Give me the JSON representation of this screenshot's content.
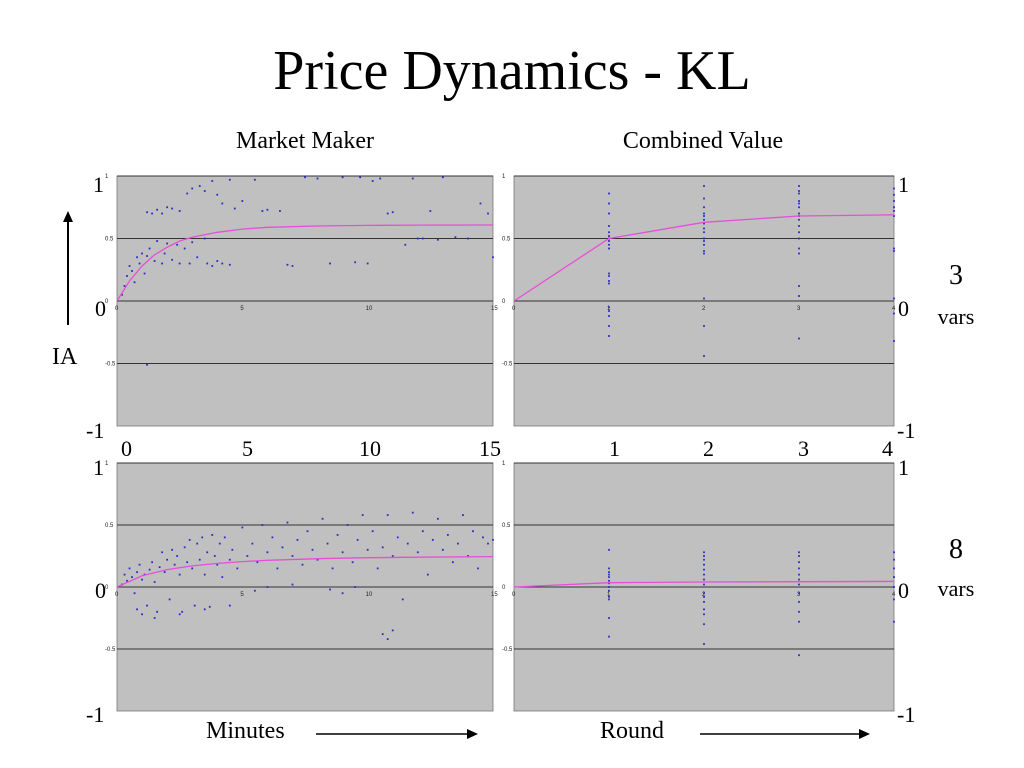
{
  "slide": {
    "title": "Price Dynamics - KL",
    "col_left_title": "Market Maker",
    "col_right_title": "Combined Value",
    "ylabel": "IA",
    "x_left_label": "Minutes",
    "x_right_label": "Round",
    "row1_label_num": "3",
    "row1_label_unit": "vars",
    "row2_label_num": "8",
    "row2_label_unit": "vars"
  },
  "axis_labels": {
    "y_top": "1",
    "y_zero": "0",
    "y_bottom": "-1",
    "x_minutes": [
      "0",
      "5",
      "10",
      "15"
    ],
    "x_rounds": [
      "1",
      "2",
      "3",
      "4"
    ]
  },
  "colors": {
    "panel_bg": "#c0c0c0",
    "points": "#2b2bc8",
    "fit": "#e64fd8"
  },
  "chart_data": [
    {
      "type": "scatter",
      "panel": "market-maker-3vars",
      "xlabel": "",
      "ylabel": "IA",
      "xlim": [
        0,
        15
      ],
      "ylim": [
        -1,
        1
      ],
      "grid": true,
      "fit_curve": {
        "x": [
          0,
          0.5,
          1,
          1.5,
          2,
          2.5,
          3,
          4,
          5,
          6,
          8,
          10,
          12,
          15
        ],
        "y": [
          0,
          0.16,
          0.28,
          0.37,
          0.43,
          0.48,
          0.51,
          0.55,
          0.575,
          0.59,
          0.6,
          0.605,
          0.607,
          0.608
        ]
      },
      "points": [
        [
          0.2,
          0.05
        ],
        [
          0.3,
          0.12
        ],
        [
          0.4,
          0.2
        ],
        [
          0.5,
          0.28
        ],
        [
          0.6,
          0.24
        ],
        [
          0.7,
          0.15
        ],
        [
          0.8,
          0.35
        ],
        [
          0.9,
          0.3
        ],
        [
          1.0,
          0.38
        ],
        [
          1.1,
          0.22
        ],
        [
          1.2,
          0.36
        ],
        [
          1.3,
          0.42
        ],
        [
          1.2,
          -0.51
        ],
        [
          1.5,
          0.32
        ],
        [
          1.6,
          0.48
        ],
        [
          1.8,
          0.3
        ],
        [
          1.9,
          0.38
        ],
        [
          2.0,
          0.46
        ],
        [
          2.2,
          0.33
        ],
        [
          2.4,
          0.45
        ],
        [
          2.5,
          0.3
        ],
        [
          2.7,
          0.42
        ],
        [
          2.9,
          0.3
        ],
        [
          3.0,
          0.47
        ],
        [
          3.2,
          0.35
        ],
        [
          3.5,
          0.5
        ],
        [
          3.6,
          0.3
        ],
        [
          3.8,
          0.28
        ],
        [
          4.0,
          0.32
        ],
        [
          4.2,
          0.3
        ],
        [
          4.5,
          0.29
        ],
        [
          1.2,
          0.71
        ],
        [
          1.4,
          0.7
        ],
        [
          1.6,
          0.73
        ],
        [
          1.8,
          0.7
        ],
        [
          2.0,
          0.75
        ],
        [
          2.2,
          0.74
        ],
        [
          2.5,
          0.72
        ],
        [
          2.8,
          0.86
        ],
        [
          3.0,
          0.9
        ],
        [
          3.3,
          0.92
        ],
        [
          3.5,
          0.88
        ],
        [
          3.8,
          0.96
        ],
        [
          4.0,
          0.85
        ],
        [
          4.2,
          0.78
        ],
        [
          4.5,
          0.97
        ],
        [
          4.7,
          0.74
        ],
        [
          5.0,
          0.8
        ],
        [
          5.5,
          0.97
        ],
        [
          5.8,
          0.72
        ],
        [
          6.0,
          0.73
        ],
        [
          6.5,
          0.72
        ],
        [
          6.8,
          0.29
        ],
        [
          7.0,
          0.28
        ],
        [
          7.5,
          0.99
        ],
        [
          8.0,
          0.98
        ],
        [
          8.5,
          0.3
        ],
        [
          9.0,
          0.99
        ],
        [
          9.5,
          0.31
        ],
        [
          10.0,
          0.3
        ],
        [
          10.5,
          0.98
        ],
        [
          9.7,
          0.99
        ],
        [
          10.2,
          0.96
        ],
        [
          10.8,
          0.7
        ],
        [
          11.0,
          0.71
        ],
        [
          11.5,
          0.45
        ],
        [
          12.0,
          0.5
        ],
        [
          12.5,
          0.72
        ],
        [
          12.8,
          0.49
        ],
        [
          13.0,
          0.99
        ],
        [
          13.5,
          0.51
        ],
        [
          14.0,
          0.5
        ],
        [
          14.5,
          0.78
        ],
        [
          14.8,
          0.7
        ],
        [
          15.0,
          0.35
        ],
        [
          11.8,
          0.98
        ],
        [
          12.2,
          0.5
        ]
      ]
    },
    {
      "type": "scatter",
      "panel": "combined-value-3vars",
      "xlim": [
        0,
        4
      ],
      "ylim": [
        -1,
        1
      ],
      "grid": true,
      "fit_curve": {
        "x": [
          0,
          1,
          2,
          3,
          4
        ],
        "y": [
          0,
          0.5,
          0.63,
          0.68,
          0.69
        ]
      },
      "points": [
        [
          1,
          0.86
        ],
        [
          1,
          0.78
        ],
        [
          1,
          0.7
        ],
        [
          1,
          0.6
        ],
        [
          1,
          0.55
        ],
        [
          1,
          0.52
        ],
        [
          1,
          0.5
        ],
        [
          1,
          0.48
        ],
        [
          1,
          0.45
        ],
        [
          1,
          0.42
        ],
        [
          1,
          0.22
        ],
        [
          1,
          0.2
        ],
        [
          1,
          0.16
        ],
        [
          1,
          0.14
        ],
        [
          1,
          -0.05
        ],
        [
          1,
          -0.08
        ],
        [
          1,
          -0.12
        ],
        [
          1,
          -0.2
        ],
        [
          1,
          -0.28
        ],
        [
          2,
          0.92
        ],
        [
          2,
          0.82
        ],
        [
          2,
          0.75
        ],
        [
          2,
          0.7
        ],
        [
          2,
          0.68
        ],
        [
          2,
          0.65
        ],
        [
          2,
          0.62
        ],
        [
          2,
          0.58
        ],
        [
          2,
          0.55
        ],
        [
          2,
          0.5
        ],
        [
          2,
          0.48
        ],
        [
          2,
          0.45
        ],
        [
          2,
          0.4
        ],
        [
          2,
          0.38
        ],
        [
          2,
          0.02
        ],
        [
          2,
          -0.2
        ],
        [
          2,
          -0.44
        ],
        [
          3,
          0.92
        ],
        [
          3,
          0.88
        ],
        [
          3,
          0.86
        ],
        [
          3,
          0.8
        ],
        [
          3,
          0.78
        ],
        [
          3,
          0.75
        ],
        [
          3,
          0.7
        ],
        [
          3,
          0.68
        ],
        [
          3,
          0.65
        ],
        [
          3,
          0.6
        ],
        [
          3,
          0.55
        ],
        [
          3,
          0.5
        ],
        [
          3,
          0.42
        ],
        [
          3,
          0.38
        ],
        [
          3,
          0.12
        ],
        [
          3,
          0.04
        ],
        [
          3,
          -0.3
        ],
        [
          4,
          0.9
        ],
        [
          4,
          0.85
        ],
        [
          4,
          0.8
        ],
        [
          4,
          0.75
        ],
        [
          4,
          0.72
        ],
        [
          4,
          0.68
        ],
        [
          4,
          0.42
        ],
        [
          4,
          0.4
        ],
        [
          4,
          0.02
        ],
        [
          4,
          -0.1
        ],
        [
          4,
          -0.32
        ]
      ]
    },
    {
      "type": "scatter",
      "panel": "market-maker-8vars",
      "xlim": [
        0,
        15
      ],
      "ylim": [
        -1,
        1
      ],
      "grid": true,
      "fit_curve": {
        "x": [
          0,
          1,
          2,
          3,
          4,
          5,
          6,
          8,
          10,
          12,
          15
        ],
        "y": [
          0,
          0.09,
          0.14,
          0.17,
          0.19,
          0.205,
          0.215,
          0.228,
          0.236,
          0.24,
          0.245
        ]
      },
      "points": [
        [
          0.2,
          0.02
        ],
        [
          0.3,
          0.1
        ],
        [
          0.4,
          0.05
        ],
        [
          0.5,
          0.15
        ],
        [
          0.6,
          0.08
        ],
        [
          0.7,
          -0.05
        ],
        [
          0.8,
          0.12
        ],
        [
          0.9,
          0.18
        ],
        [
          1.0,
          0.06
        ],
        [
          1.1,
          0.1
        ],
        [
          1.2,
          -0.15
        ],
        [
          1.3,
          0.14
        ],
        [
          1.4,
          0.2
        ],
        [
          1.5,
          0.04
        ],
        [
          1.6,
          -0.2
        ],
        [
          1.7,
          0.16
        ],
        [
          1.8,
          0.28
        ],
        [
          1.9,
          0.12
        ],
        [
          2.0,
          0.22
        ],
        [
          2.1,
          -0.1
        ],
        [
          2.2,
          0.3
        ],
        [
          2.3,
          0.18
        ],
        [
          2.4,
          0.25
        ],
        [
          2.5,
          0.1
        ],
        [
          2.6,
          -0.2
        ],
        [
          2.7,
          0.32
        ],
        [
          2.8,
          0.2
        ],
        [
          2.9,
          0.38
        ],
        [
          3.0,
          0.15
        ],
        [
          3.1,
          -0.15
        ],
        [
          3.2,
          0.35
        ],
        [
          3.3,
          0.22
        ],
        [
          3.4,
          0.4
        ],
        [
          3.5,
          0.1
        ],
        [
          3.6,
          0.28
        ],
        [
          3.7,
          -0.16
        ],
        [
          3.8,
          0.42
        ],
        [
          3.9,
          0.25
        ],
        [
          4.0,
          0.18
        ],
        [
          4.1,
          0.35
        ],
        [
          4.2,
          0.08
        ],
        [
          4.3,
          0.4
        ],
        [
          4.5,
          0.22
        ],
        [
          4.6,
          0.3
        ],
        [
          4.8,
          0.15
        ],
        [
          5.0,
          0.48
        ],
        [
          5.2,
          0.25
        ],
        [
          5.4,
          0.35
        ],
        [
          5.6,
          0.2
        ],
        [
          5.8,
          0.5
        ],
        [
          6.0,
          0.28
        ],
        [
          6.2,
          0.4
        ],
        [
          6.4,
          0.15
        ],
        [
          6.6,
          0.32
        ],
        [
          6.8,
          0.52
        ],
        [
          7.0,
          0.25
        ],
        [
          7.2,
          0.38
        ],
        [
          7.4,
          0.18
        ],
        [
          7.6,
          0.45
        ],
        [
          7.8,
          0.3
        ],
        [
          8.0,
          0.22
        ],
        [
          8.2,
          0.55
        ],
        [
          8.4,
          0.35
        ],
        [
          8.6,
          0.15
        ],
        [
          8.8,
          0.42
        ],
        [
          9.0,
          0.28
        ],
        [
          9.2,
          0.5
        ],
        [
          9.4,
          0.2
        ],
        [
          9.6,
          0.38
        ],
        [
          9.8,
          0.58
        ],
        [
          10.0,
          0.3
        ],
        [
          10.2,
          0.45
        ],
        [
          10.4,
          0.15
        ],
        [
          10.6,
          0.32
        ],
        [
          10.8,
          0.58
        ],
        [
          11.0,
          0.25
        ],
        [
          11.2,
          0.4
        ],
        [
          11.4,
          -0.1
        ],
        [
          11.6,
          0.35
        ],
        [
          11.8,
          0.6
        ],
        [
          12.0,
          0.28
        ],
        [
          12.2,
          0.45
        ],
        [
          12.4,
          0.1
        ],
        [
          12.6,
          0.38
        ],
        [
          12.8,
          0.55
        ],
        [
          13.0,
          0.3
        ],
        [
          13.2,
          0.42
        ],
        [
          13.4,
          0.2
        ],
        [
          13.6,
          0.35
        ],
        [
          13.8,
          0.58
        ],
        [
          14.0,
          0.25
        ],
        [
          14.2,
          0.45
        ],
        [
          14.4,
          0.15
        ],
        [
          14.6,
          0.4
        ],
        [
          14.8,
          0.35
        ],
        [
          15.0,
          0.38
        ],
        [
          10.6,
          -0.38
        ],
        [
          10.8,
          -0.42
        ],
        [
          11.0,
          -0.35
        ],
        [
          9.0,
          -0.05
        ],
        [
          9.5,
          0.0
        ],
        [
          8.5,
          -0.02
        ],
        [
          7.0,
          0.02
        ],
        [
          6.0,
          0.0
        ],
        [
          5.5,
          -0.03
        ],
        [
          4.5,
          -0.15
        ],
        [
          3.5,
          -0.18
        ],
        [
          2.5,
          -0.22
        ],
        [
          1.5,
          -0.25
        ],
        [
          1.0,
          -0.22
        ],
        [
          0.8,
          -0.18
        ]
      ]
    },
    {
      "type": "scatter",
      "panel": "combined-value-8vars",
      "xlim": [
        0,
        4
      ],
      "ylim": [
        -1,
        1
      ],
      "grid": true,
      "fit_curve": {
        "x": [
          0,
          1,
          2,
          3,
          4
        ],
        "y": [
          0,
          0.035,
          0.04,
          0.043,
          0.045
        ]
      },
      "points": [
        [
          1,
          0.3
        ],
        [
          1,
          0.15
        ],
        [
          1,
          0.12
        ],
        [
          1,
          0.1
        ],
        [
          1,
          0.08
        ],
        [
          1,
          0.05
        ],
        [
          1,
          0.03
        ],
        [
          1,
          0.0
        ],
        [
          1,
          -0.03
        ],
        [
          1,
          -0.08
        ],
        [
          1,
          -0.1
        ],
        [
          1,
          -0.25
        ],
        [
          1,
          -0.4
        ],
        [
          2,
          0.28
        ],
        [
          2,
          0.25
        ],
        [
          2,
          0.22
        ],
        [
          2,
          0.18
        ],
        [
          2,
          0.14
        ],
        [
          2,
          0.1
        ],
        [
          2,
          0.06
        ],
        [
          2,
          0.02
        ],
        [
          2,
          -0.05
        ],
        [
          2,
          -0.08
        ],
        [
          2,
          -0.12
        ],
        [
          2,
          -0.18
        ],
        [
          2,
          -0.22
        ],
        [
          2,
          -0.3
        ],
        [
          2,
          -0.46
        ],
        [
          3,
          0.28
        ],
        [
          3,
          0.25
        ],
        [
          3,
          0.2
        ],
        [
          3,
          0.15
        ],
        [
          3,
          0.1
        ],
        [
          3,
          0.06
        ],
        [
          3,
          0.02
        ],
        [
          3,
          -0.05
        ],
        [
          3,
          -0.12
        ],
        [
          3,
          -0.2
        ],
        [
          3,
          -0.28
        ],
        [
          3,
          -0.55
        ],
        [
          4,
          0.28
        ],
        [
          4,
          0.22
        ],
        [
          4,
          0.15
        ],
        [
          4,
          0.08
        ],
        [
          4,
          0.0
        ],
        [
          4,
          -0.1
        ],
        [
          4,
          -0.28
        ]
      ]
    }
  ]
}
